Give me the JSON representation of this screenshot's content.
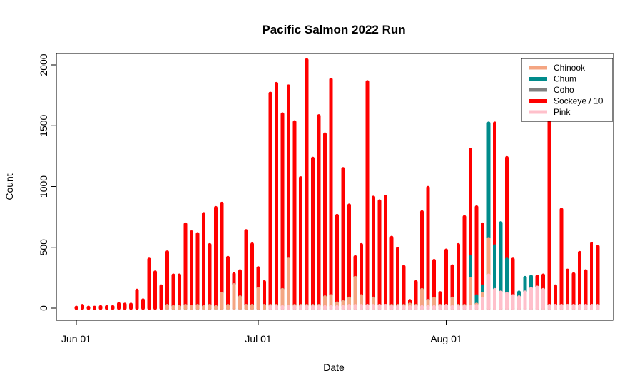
{
  "chart_data": {
    "type": "bar",
    "title": "Pacific Salmon 2022 Run",
    "xlabel": "Date",
    "ylabel": "Count",
    "ylim": [
      0,
      2100
    ],
    "yticks": [
      0,
      500,
      1000,
      1500,
      2000
    ],
    "xticks": [
      {
        "day": 0,
        "label": "Jun 01"
      },
      {
        "day": 30,
        "label": "Jul 01"
      },
      {
        "day": 61,
        "label": "Aug 01"
      }
    ],
    "legend": {
      "position": "top-right",
      "entries": [
        {
          "label": "Chinook",
          "color": "#f4a582"
        },
        {
          "label": "Chum",
          "color": "#008b8b"
        },
        {
          "label": "Coho",
          "color": "#808080"
        },
        {
          "label": "Sockeye / 10",
          "color": "#ff0000"
        },
        {
          "label": "Pink",
          "color": "#ffc0cb"
        }
      ]
    },
    "series_order": [
      "Pink",
      "Chinook",
      "Coho",
      "Chum",
      "Sockeye / 10"
    ],
    "days": [
      0,
      1,
      2,
      3,
      4,
      5,
      6,
      7,
      8,
      9,
      10,
      11,
      12,
      13,
      14,
      15,
      16,
      17,
      18,
      19,
      20,
      21,
      22,
      23,
      24,
      25,
      26,
      27,
      28,
      29,
      30,
      31,
      32,
      33,
      34,
      35,
      36,
      37,
      38,
      39,
      40,
      41,
      42,
      43,
      44,
      45,
      46,
      47,
      48,
      49,
      50,
      51,
      52,
      53,
      54,
      55,
      56,
      57,
      58,
      59,
      60,
      61,
      62,
      63,
      64,
      65,
      66,
      67,
      68,
      69,
      70,
      71,
      72,
      73,
      74,
      75,
      76,
      77,
      78,
      79,
      80,
      81,
      82,
      83,
      84,
      85,
      86
    ],
    "cumulative": {
      "Pink": [
        0,
        0,
        0,
        0,
        0,
        0,
        0,
        0,
        0,
        0,
        0,
        0,
        0,
        0,
        0,
        0,
        0,
        0,
        0,
        0,
        0,
        0,
        0,
        0,
        0,
        0,
        0,
        0,
        0,
        0,
        0,
        0,
        10,
        10,
        10,
        10,
        10,
        10,
        10,
        10,
        10,
        10,
        10,
        10,
        10,
        20,
        20,
        20,
        20,
        20,
        20,
        20,
        10,
        10,
        10,
        10,
        10,
        10,
        10,
        10,
        10,
        20,
        10,
        10,
        10,
        10,
        20,
        80,
        270,
        150,
        130,
        120,
        100,
        90,
        130,
        160,
        170,
        150,
        20,
        20,
        20,
        20,
        20,
        20,
        20,
        20,
        20
      ],
      "Chinook": [
        0,
        0,
        0,
        0,
        0,
        0,
        0,
        0,
        0,
        0,
        0,
        0,
        0,
        0,
        0,
        20,
        10,
        10,
        20,
        10,
        20,
        10,
        20,
        10,
        120,
        20,
        190,
        90,
        20,
        20,
        160,
        20,
        20,
        20,
        150,
        400,
        20,
        20,
        20,
        20,
        20,
        90,
        100,
        40,
        50,
        80,
        250,
        100,
        20,
        80,
        20,
        20,
        20,
        20,
        20,
        30,
        20,
        150,
        60,
        80,
        20,
        20,
        80,
        20,
        20,
        240,
        30,
        120,
        570,
        150,
        130,
        120,
        100,
        90,
        130,
        160,
        170,
        150,
        20,
        20,
        20,
        20,
        20,
        20,
        20,
        20,
        20
      ],
      "Coho": [
        0,
        0,
        0,
        0,
        0,
        0,
        0,
        0,
        0,
        0,
        0,
        0,
        0,
        0,
        0,
        20,
        10,
        10,
        20,
        10,
        20,
        10,
        20,
        10,
        120,
        20,
        190,
        90,
        20,
        20,
        160,
        20,
        20,
        20,
        150,
        400,
        20,
        20,
        20,
        20,
        20,
        90,
        100,
        40,
        50,
        80,
        250,
        100,
        20,
        80,
        20,
        20,
        20,
        20,
        20,
        30,
        20,
        150,
        60,
        80,
        20,
        20,
        80,
        20,
        20,
        240,
        30,
        120,
        570,
        150,
        130,
        120,
        100,
        90,
        130,
        160,
        170,
        150,
        20,
        20,
        20,
        20,
        20,
        20,
        20,
        20,
        20
      ],
      "Chum": [
        0,
        0,
        0,
        0,
        0,
        0,
        0,
        0,
        0,
        0,
        0,
        0,
        0,
        0,
        0,
        20,
        10,
        10,
        20,
        10,
        20,
        10,
        20,
        10,
        120,
        20,
        190,
        90,
        20,
        20,
        160,
        20,
        20,
        20,
        150,
        400,
        20,
        20,
        20,
        20,
        20,
        90,
        100,
        40,
        50,
        80,
        250,
        100,
        20,
        80,
        20,
        20,
        20,
        20,
        20,
        30,
        20,
        150,
        60,
        80,
        20,
        20,
        80,
        20,
        20,
        420,
        100,
        180,
        1520,
        510,
        700,
        400,
        100,
        130,
        250,
        260,
        170,
        150,
        20,
        20,
        20,
        20,
        20,
        20,
        20,
        20,
        20
      ],
      "Sockeye / 10": [
        5,
        20,
        5,
        5,
        10,
        10,
        10,
        35,
        30,
        30,
        145,
        65,
        400,
        295,
        180,
        460,
        270,
        270,
        690,
        625,
        610,
        775,
        520,
        825,
        860,
        415,
        280,
        305,
        635,
        525,
        330,
        215,
        1765,
        1845,
        1595,
        1825,
        1530,
        1070,
        2040,
        1230,
        1580,
        1430,
        1880,
        760,
        1145,
        845,
        420,
        520,
        1860,
        910,
        880,
        915,
        580,
        490,
        340,
        60,
        215,
        790,
        990,
        390,
        125,
        475,
        345,
        520,
        750,
        1305,
        830,
        690,
        520,
        1520,
        510,
        1235,
        400,
        100,
        130,
        250,
        260,
        270,
        1600,
        180,
        810,
        310,
        280,
        455,
        305,
        530,
        505
      ]
    },
    "pink_tail": {
      "day": 86,
      "value": 5
    }
  }
}
